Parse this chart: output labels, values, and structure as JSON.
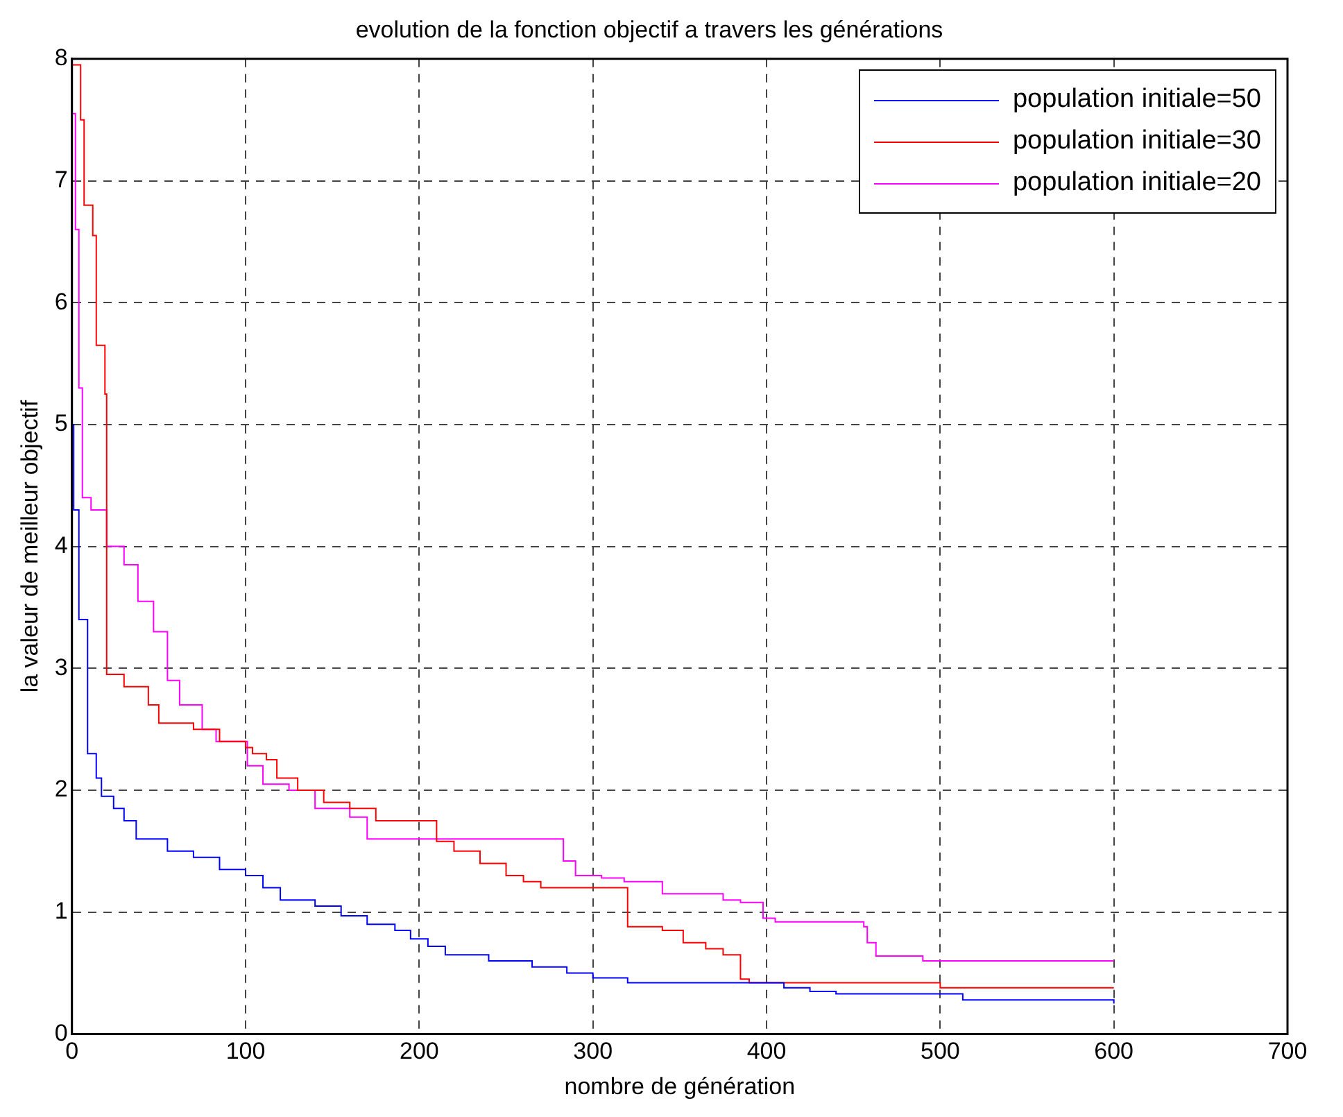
{
  "chart_data": {
    "type": "step",
    "title": "evolution de la fonction objectif a travers les générations",
    "xlabel": "nombre de génération",
    "ylabel": "la valeur de meilleur objectif",
    "xlim": [
      0,
      700
    ],
    "xticks": [
      0,
      100,
      200,
      300,
      400,
      500,
      600,
      700
    ],
    "ylim": [
      0,
      8
    ],
    "yticks": [
      0,
      1,
      2,
      3,
      4,
      5,
      6,
      7,
      8
    ],
    "grid": true,
    "legend": "top right",
    "series": [
      {
        "name": "population initiale=50",
        "color": "#0000ff",
        "x": [
          0,
          1,
          4,
          9,
          14,
          17,
          24,
          30,
          37,
          55,
          70,
          85,
          100,
          110,
          120,
          140,
          155,
          170,
          186,
          195,
          205,
          215,
          240,
          265,
          285,
          300,
          320,
          410,
          425,
          440,
          513,
          600
        ],
        "values": [
          5.0,
          4.3,
          3.4,
          2.3,
          2.1,
          1.95,
          1.85,
          1.75,
          1.6,
          1.5,
          1.45,
          1.35,
          1.3,
          1.2,
          1.1,
          1.05,
          0.97,
          0.9,
          0.85,
          0.78,
          0.72,
          0.65,
          0.6,
          0.55,
          0.5,
          0.46,
          0.42,
          0.38,
          0.35,
          0.33,
          0.28,
          0.25
        ]
      },
      {
        "name": "population initiale=30",
        "color": "#ff0000",
        "x": [
          0,
          5,
          7,
          12,
          14,
          19,
          20,
          30,
          44,
          50,
          70,
          85,
          100,
          104,
          112,
          118,
          130,
          145,
          160,
          175,
          210,
          220,
          235,
          250,
          260,
          270,
          320,
          340,
          352,
          365,
          375,
          385,
          390,
          500,
          600
        ],
        "values": [
          7.95,
          7.5,
          6.8,
          6.55,
          5.65,
          5.25,
          2.95,
          2.85,
          2.7,
          2.55,
          2.5,
          2.4,
          2.35,
          2.3,
          2.25,
          2.1,
          2.0,
          1.9,
          1.85,
          1.75,
          1.58,
          1.5,
          1.4,
          1.3,
          1.25,
          1.2,
          0.88,
          0.85,
          0.75,
          0.7,
          0.65,
          0.45,
          0.42,
          0.38,
          0.38
        ]
      },
      {
        "name": "population initiale=20",
        "color": "#ff00ff",
        "x": [
          0,
          2,
          4,
          6,
          11,
          20,
          30,
          38,
          47,
          55,
          62,
          75,
          83,
          101,
          110,
          125,
          140,
          160,
          170,
          283,
          290,
          305,
          318,
          340,
          375,
          385,
          398,
          405,
          456,
          458,
          463,
          490,
          600
        ],
        "values": [
          7.55,
          6.6,
          5.3,
          4.4,
          4.3,
          4.0,
          3.85,
          3.55,
          3.3,
          2.9,
          2.7,
          2.5,
          2.4,
          2.2,
          2.05,
          2.0,
          1.85,
          1.78,
          1.6,
          1.42,
          1.3,
          1.28,
          1.25,
          1.15,
          1.1,
          1.08,
          0.95,
          0.92,
          0.88,
          0.75,
          0.64,
          0.6,
          0.6
        ]
      }
    ]
  }
}
